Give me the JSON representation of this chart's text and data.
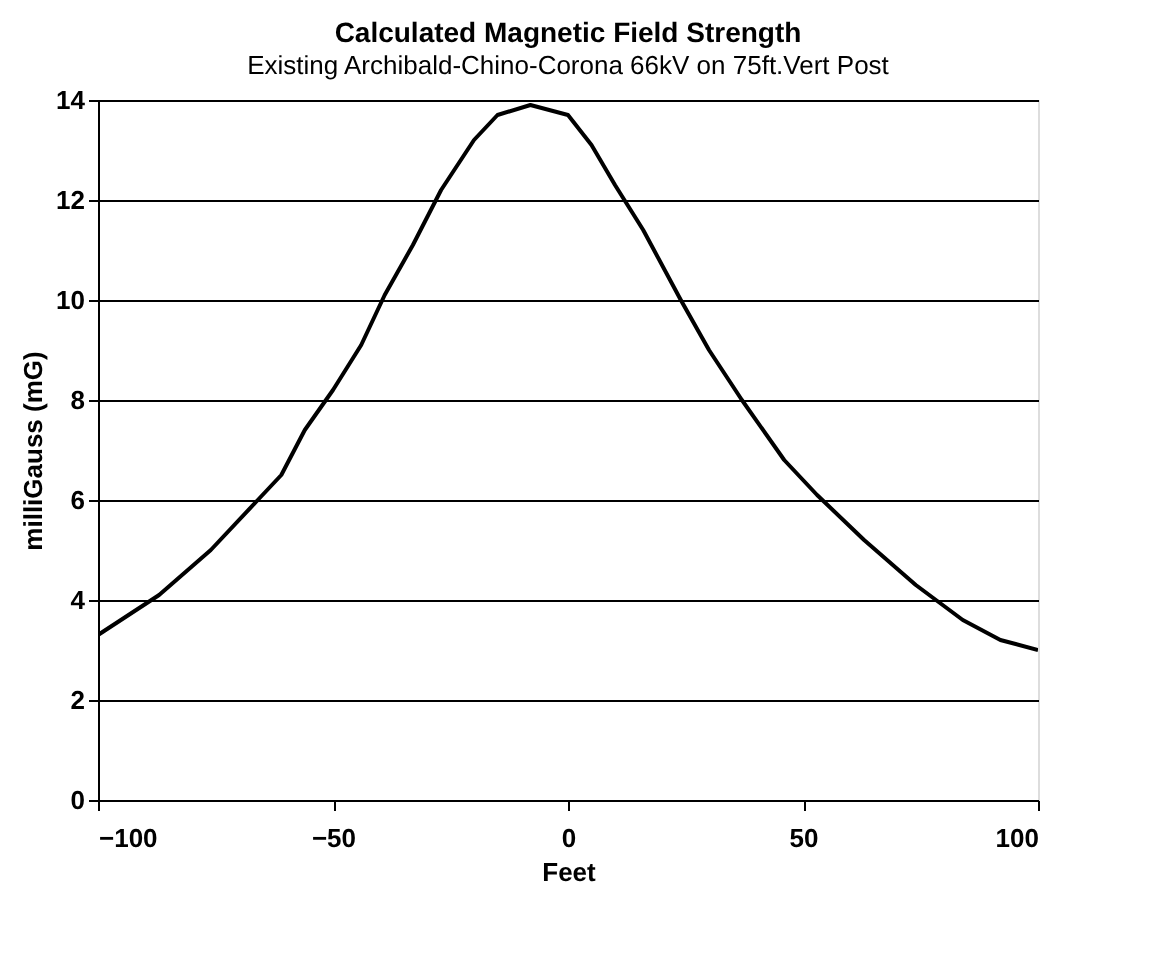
{
  "chart_data": {
    "type": "line",
    "title": "Calculated Magnetic Field Strength",
    "subtitle": "Existing Archibald-Chino-Corona 66kV on 75ft.Vert Post",
    "xlabel": "Feet",
    "ylabel": "milliGauss (mG)",
    "x": [
      -100,
      -87,
      -76,
      -66,
      -61,
      -56,
      -50,
      -44,
      -39,
      -33,
      -27,
      -20,
      -15,
      -8,
      0,
      5,
      10,
      16,
      24,
      30,
      37,
      46,
      53,
      63,
      74,
      84,
      92,
      100
    ],
    "series": [
      {
        "color": "#000000",
        "values": [
          3.3,
          4.1,
          5.0,
          6.0,
          6.5,
          7.4,
          8.2,
          9.1,
          10.1,
          11.1,
          12.2,
          13.2,
          13.7,
          13.9,
          13.7,
          13.1,
          12.3,
          11.4,
          10.0,
          9.0,
          8.0,
          6.8,
          6.1,
          5.2,
          4.3,
          3.6,
          3.2,
          3.0
        ]
      }
    ],
    "xlim": [
      -100,
      100
    ],
    "xticks": [
      -100,
      -50,
      0,
      50,
      100
    ],
    "ylim": [
      0,
      14
    ],
    "yticks": [
      0,
      2,
      4,
      6,
      8,
      10,
      12,
      14
    ],
    "grid": "y",
    "legend": false,
    "marker": "none",
    "line_style": "solid"
  }
}
